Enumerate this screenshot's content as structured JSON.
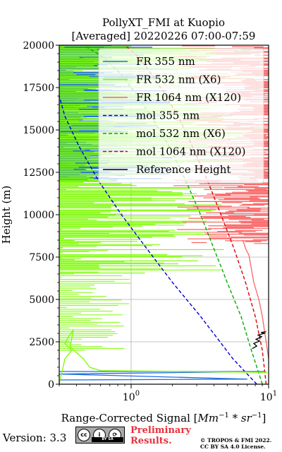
{
  "chart_data": {
    "type": "line",
    "title_line1": "PollyXT_FMI at Kuopio",
    "title_line2": "[Averaged] 20220226 07:00-07:59",
    "xlabel_main": "Range-Corrected Signal [",
    "xlabel_unit": "Mm",
    "xlabel_exp1": "−1",
    "xlabel_mid": " * ",
    "xlabel_sr": "sr",
    "xlabel_exp2": "−1",
    "xlabel_end": "]",
    "ylabel": "Height (m)",
    "x_scale": "log",
    "xlim": [
      0.3,
      10
    ],
    "ylim": [
      0,
      20000
    ],
    "x_ticks": [
      {
        "value": 1,
        "base": "10",
        "exp": "0"
      },
      {
        "value": 10,
        "base": "10",
        "exp": "1"
      }
    ],
    "y_ticks": [
      "0",
      "2500",
      "5000",
      "7500",
      "10000",
      "12500",
      "15000",
      "17500",
      "20000"
    ],
    "grid": true,
    "legend_position": "top-right",
    "legend": [
      {
        "label": "FR 355 nm",
        "color": "#1f6fe0",
        "style": "solid"
      },
      {
        "label": "FR 532 nm (X6)",
        "color": "#7cfc00",
        "style": "solid"
      },
      {
        "label": "FR 1064 nm (X120)",
        "color": "#fa6464",
        "style": "solid"
      },
      {
        "label": "mol 355 nm",
        "color": "#0000cc",
        "style": "dashed"
      },
      {
        "label": "mol 532 nm (X6)",
        "color": "#00aa00",
        "style": "dashed"
      },
      {
        "label": "mol 1064 nm (X120)",
        "color": "#dd0000",
        "style": "dashed"
      },
      {
        "label": "Reference Height",
        "color": "#000000",
        "style": "solid"
      }
    ],
    "series": [
      {
        "name": "mol 355 nm",
        "color": "#0000cc",
        "style": "dashed",
        "x": [
          8.2,
          5.5,
          3.2,
          2.0,
          1.3,
          0.85,
          0.58,
          0.42,
          0.33,
          0.3
        ],
        "y": [
          0,
          1500,
          4000,
          6000,
          8000,
          10000,
          12000,
          14000,
          15800,
          17000
        ]
      },
      {
        "name": "mol 532 nm (X6)",
        "color": "#00aa00",
        "style": "dashed",
        "x": [
          9.0,
          7.5,
          6.3,
          5.0,
          4.0,
          3.2,
          2.5,
          1.9,
          1.4,
          1.05,
          0.8,
          0.6,
          0.45
        ],
        "y": [
          0,
          2000,
          4000,
          6000,
          8000,
          10000,
          12000,
          14000,
          15800,
          17300,
          18500,
          19400,
          20000
        ]
      },
      {
        "name": "mol 1064 nm (X120)",
        "color": "#dd0000",
        "style": "dashed",
        "x": [
          9.6,
          9.0,
          8.0,
          6.8,
          5.6,
          4.5,
          3.6,
          2.8,
          2.2,
          1.7,
          1.35,
          1.1,
          0.9
        ],
        "y": [
          0,
          2000,
          4000,
          6000,
          8000,
          10000,
          12000,
          14000,
          15800,
          17300,
          18500,
          19400,
          20000
        ]
      },
      {
        "name": "FR 355 nm",
        "color": "#1f6fe0",
        "style": "solid",
        "x": [
          0.3,
          9.5,
          0.3,
          7.0,
          0.3
        ],
        "y": [
          750,
          750,
          600,
          300,
          250
        ]
      },
      {
        "name": "FR 532 nm (X6)",
        "color": "#7cfc00",
        "style": "solid",
        "x": [
          0.3,
          0.33,
          0.37,
          0.33,
          0.35,
          0.38,
          0.36,
          0.45,
          0.5,
          0.6,
          9.8
        ],
        "y": [
          0,
          1500,
          2000,
          2400,
          2800,
          3200,
          2200,
          1500,
          1000,
          800,
          700
        ]
      },
      {
        "name": "FR 1064 nm (X120)",
        "color": "#fa6464",
        "style": "solid",
        "x": [
          10,
          9.6,
          9.2,
          9.0,
          8.5,
          7.8,
          7.5,
          7.2,
          6.8,
          6.5
        ],
        "y": [
          1500,
          2500,
          3500,
          4000,
          5000,
          6000,
          6800,
          7600,
          8000,
          8500
        ]
      },
      {
        "name": "Reference Height",
        "color": "#000000",
        "style": "solid",
        "x": [
          7.6,
          8.2,
          7.8,
          8.6,
          8.1,
          8.9,
          8.4,
          9.3,
          8.8,
          9.6
        ],
        "y": [
          2100,
          2250,
          2400,
          2550,
          2650,
          2800,
          2900,
          3000,
          3050,
          3100
        ]
      }
    ]
  },
  "footer": {
    "version": "Version: 3.3",
    "preliminary_line1": "Preliminary",
    "preliminary_line2": "Results.",
    "copyright_line1": "© TROPOS & FMI 2022.",
    "copyright_line2": "CC BY SA 4.0 License.",
    "cc_strip": "BY SA"
  }
}
